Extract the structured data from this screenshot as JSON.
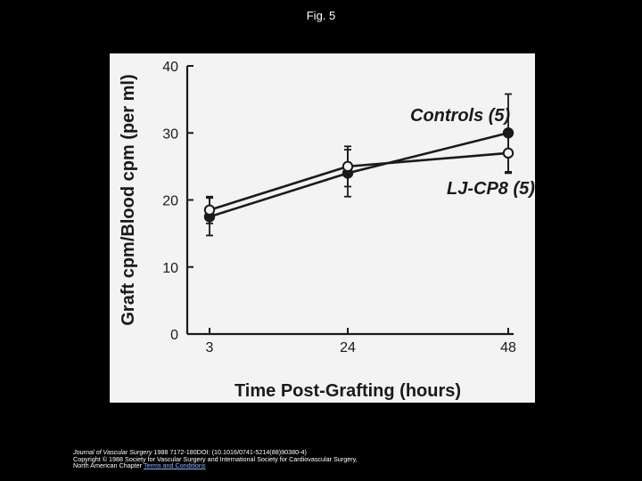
{
  "page": {
    "title": "Fig. 5"
  },
  "chart_data": {
    "type": "line",
    "xlabel": "Time Post-Grafting (hours)",
    "ylabel": "Graft cpm/Blood cpm (per ml)",
    "x": [
      3,
      24,
      48
    ],
    "x_tick_labels": [
      "3",
      "24",
      "48"
    ],
    "y_ticks": [
      0,
      10,
      20,
      30,
      40
    ],
    "ylim": [
      0,
      40
    ],
    "series": [
      {
        "name": "Controls (5)",
        "marker": "filled-circle",
        "values": [
          17.5,
          24.0,
          30.0
        ],
        "error": [
          2.8,
          3.5,
          5.8
        ]
      },
      {
        "name": "LJ-CP8 (5)",
        "marker": "open-circle",
        "values": [
          18.5,
          25.0,
          27.0
        ],
        "error": [
          2.0,
          3.0,
          3.0
        ]
      }
    ],
    "legend_placement": "right, labels beside line ends",
    "grid": false,
    "colors": {
      "background": "#f3f3f3",
      "ink": "#1a1a1a"
    }
  },
  "footer": {
    "journal": "Journal of Vascular Surgery",
    "citation": " 1988 7172-180DOI: (10.1016/0741-5214(88)90380-4)",
    "copyright": "Copyright © 1988 Society for Vascular Surgery and International Society for Cardiovascular Surgery,",
    "org": "North American Chapter",
    "terms_link": "Terms and Conditions"
  }
}
